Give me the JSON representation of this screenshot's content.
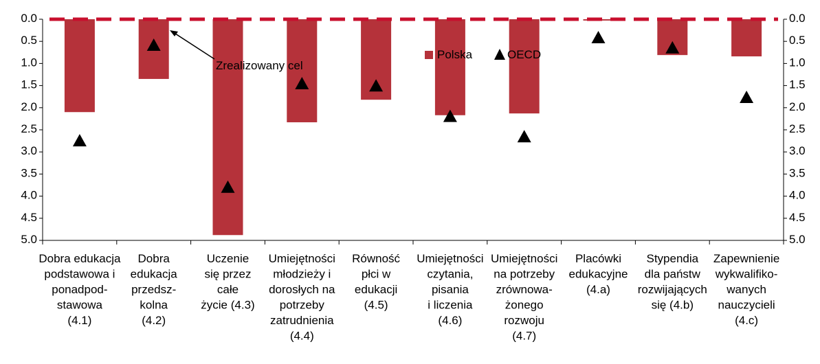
{
  "chart_data": {
    "type": "bar",
    "categories": [
      "Dobra edukacja\npodstawowa i\nponadpod-\nstawowa\n(4.1)",
      "Dobra\nedukacja\nprzedsz-\nkolna\n(4.2)",
      "Uczenie\nsię przez\ncałe\nżycie (4.3)",
      "Umiejętności\nmłodzieży i\ndorosłych na\npotrzeby\nzatrudnienia\n(4.4)",
      "Równość\npłci w\nedukacji\n(4.5)",
      "Umiejętności\nczytania,\npisania\ni liczenia\n(4.6)",
      "Umiejętności\nna potrzeby\nzrównowa-\nżonego\nrozwoju\n(4.7)",
      "Placówki\nedukacyjne\n(4.a)",
      "Stypendia\ndla państw\nrozwijających\nsię (4.b)",
      "Zapewnienie\nwykwalifiko-\nwanych\nnauczycieli\n(4.c)"
    ],
    "series": [
      {
        "name": "Polska",
        "color": "#b5323a",
        "marker": "bar",
        "values": [
          2.1,
          1.35,
          4.88,
          2.33,
          1.82,
          2.17,
          2.13,
          0.03,
          0.81,
          0.84
        ]
      },
      {
        "name": "OECD",
        "color": "#000000",
        "marker": "triangle",
        "values": [
          2.75,
          0.59,
          3.8,
          1.46,
          1.51,
          2.2,
          2.66,
          0.42,
          0.65,
          1.77
        ]
      }
    ],
    "target": {
      "value": 0,
      "label": "Zrealizowany cel",
      "color": "#c8102e"
    },
    "ylim": [
      0,
      5
    ],
    "inverted": true,
    "yticks": [
      {
        "value": 0,
        "label": "0.0"
      },
      {
        "value": 0.5,
        "label": "0.5"
      },
      {
        "value": 1,
        "label": "1.0"
      },
      {
        "value": 1.5,
        "label": "1.5"
      },
      {
        "value": 2,
        "label": "2.0"
      },
      {
        "value": 2.5,
        "label": "2.5"
      },
      {
        "value": 3,
        "label": "3.0"
      },
      {
        "value": 3.5,
        "label": "3.5"
      },
      {
        "value": 4,
        "label": "4.0"
      },
      {
        "value": 4.5,
        "label": "4.5"
      },
      {
        "value": 5,
        "label": "5.0"
      }
    ],
    "y2lim": [
      0,
      5
    ],
    "y2ticks": [
      {
        "value": 0,
        "label": "0.0"
      },
      {
        "value": 0.5,
        "label": "0.5"
      },
      {
        "value": 1,
        "label": "1.0"
      },
      {
        "value": 1.5,
        "label": "1.5"
      },
      {
        "value": 2,
        "label": "2.0"
      },
      {
        "value": 2.5,
        "label": "2.5"
      },
      {
        "value": 3,
        "label": "3.0"
      },
      {
        "value": 3.5,
        "label": "3.5"
      },
      {
        "value": 4,
        "label": "4.0"
      },
      {
        "value": 4.5,
        "label": "4.5"
      },
      {
        "value": 5,
        "label": "5.0"
      }
    ],
    "grid": false
  }
}
